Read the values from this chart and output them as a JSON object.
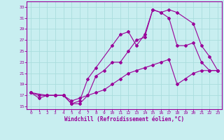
{
  "xlabel": "Windchill (Refroidissement éolien,°C)",
  "bg_color": "#c8eef0",
  "line_color": "#990099",
  "grid_color": "#aadddd",
  "xlim": [
    -0.5,
    23.5
  ],
  "ylim": [
    14.5,
    34
  ],
  "xticks": [
    0,
    1,
    2,
    3,
    4,
    5,
    6,
    7,
    8,
    9,
    10,
    11,
    12,
    13,
    14,
    15,
    16,
    17,
    18,
    19,
    20,
    21,
    22,
    23
  ],
  "yticks": [
    15,
    17,
    19,
    21,
    23,
    25,
    27,
    29,
    31,
    33
  ],
  "curve1_x": [
    0,
    1,
    2,
    3,
    4,
    5,
    6,
    7,
    8,
    9,
    10,
    11,
    12,
    13,
    14,
    15,
    16,
    17,
    18,
    19,
    20,
    21,
    22,
    23
  ],
  "curve1_y": [
    17.5,
    16.5,
    17,
    17,
    17,
    15.5,
    15.5,
    17,
    17.5,
    18,
    19,
    20,
    21,
    21.5,
    22,
    22.5,
    23,
    23.5,
    19,
    20,
    21,
    21.5,
    21.5,
    21.5
  ],
  "curve2_x": [
    0,
    1,
    2,
    3,
    4,
    5,
    6,
    7,
    8,
    10,
    11,
    12,
    13,
    14,
    15,
    16,
    17,
    18,
    20,
    21,
    22,
    23
  ],
  "curve2_y": [
    17.5,
    17,
    17,
    17,
    17,
    15.5,
    16,
    20,
    22,
    26,
    28,
    28.5,
    26,
    28,
    32.5,
    32,
    32.5,
    32,
    30,
    26,
    24,
    21.5
  ],
  "curve3_x": [
    0,
    2,
    3,
    4,
    5,
    6,
    7,
    8,
    9,
    10,
    11,
    12,
    13,
    14,
    15,
    16,
    17,
    18,
    19,
    20,
    21,
    22,
    23
  ],
  "curve3_y": [
    17.5,
    17,
    17,
    17,
    16,
    16.5,
    17,
    20.5,
    21.5,
    23,
    23,
    25,
    27,
    27.5,
    32.5,
    32,
    31,
    26,
    26,
    26.5,
    23,
    21.5,
    21.5
  ]
}
